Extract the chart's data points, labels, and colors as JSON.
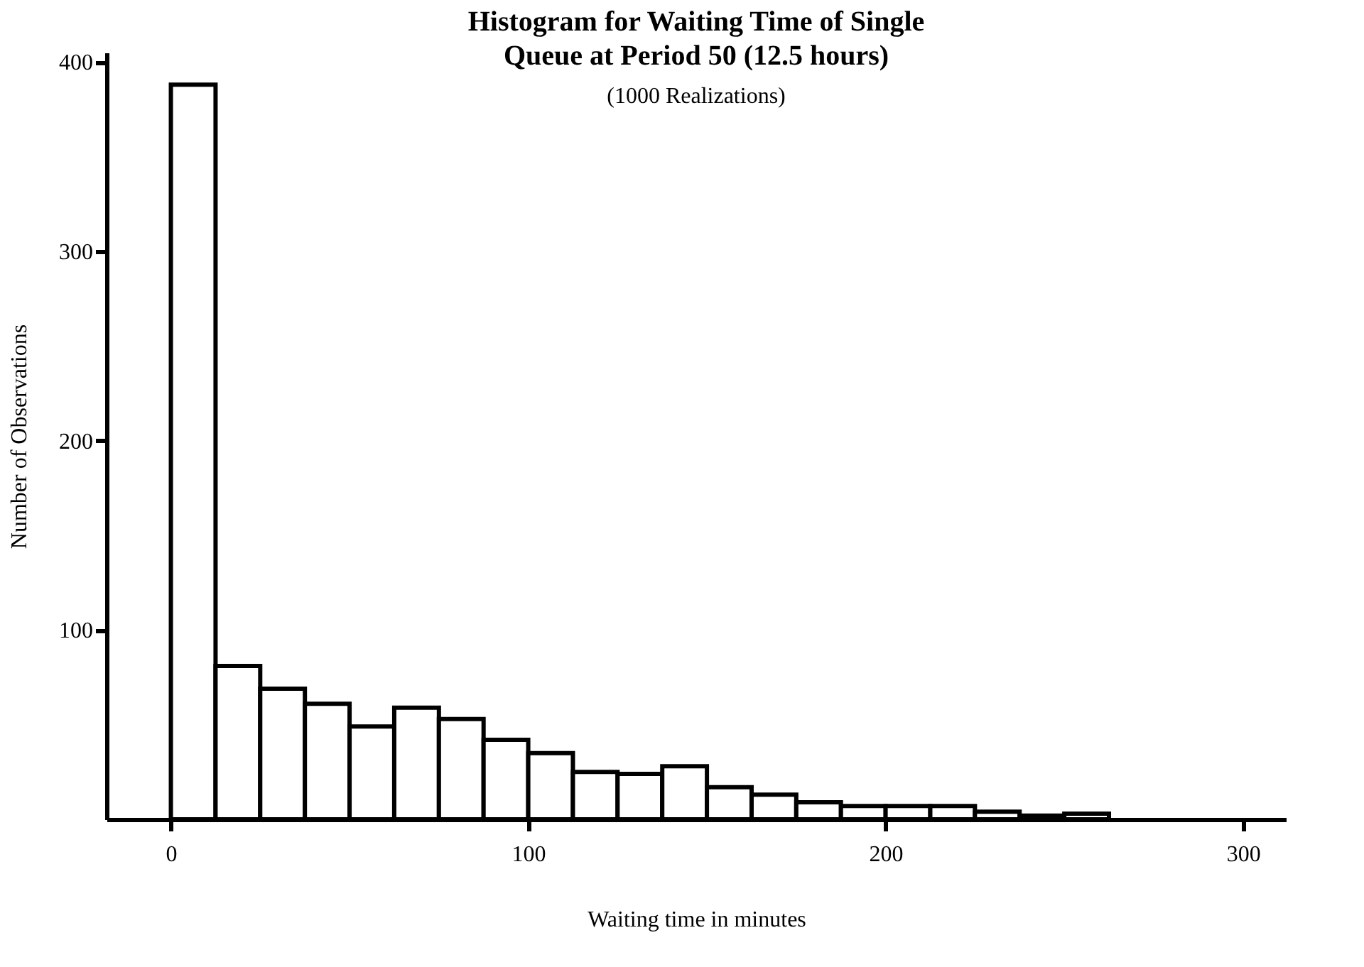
{
  "chart_data": {
    "type": "histogram",
    "title": "Histogram for Waiting Time of Single\nQueue at Period 50 (12.5 hours)",
    "subtitle": "(1000 Realizations)",
    "xlabel": "Waiting time in minutes",
    "ylabel": "Number of Observations",
    "bins": [
      0,
      12.5,
      25,
      37.5,
      50,
      62.5,
      75,
      87.5,
      100,
      112.5,
      125,
      137.5,
      150,
      162.5,
      175,
      187.5,
      200,
      212.5,
      225,
      237.5,
      250,
      262.5
    ],
    "values": [
      388,
      81,
      69,
      61,
      49,
      59,
      53,
      42,
      35,
      25,
      24,
      28,
      17,
      13,
      9,
      7,
      7,
      7,
      4,
      2,
      3
    ],
    "color": "#ffffff",
    "xlim": [
      -18,
      312
    ],
    "xticks": [
      0,
      100,
      200,
      300
    ],
    "ylim": [
      0,
      405
    ],
    "yticks": [
      100,
      200,
      300,
      400
    ],
    "grid": false
  }
}
